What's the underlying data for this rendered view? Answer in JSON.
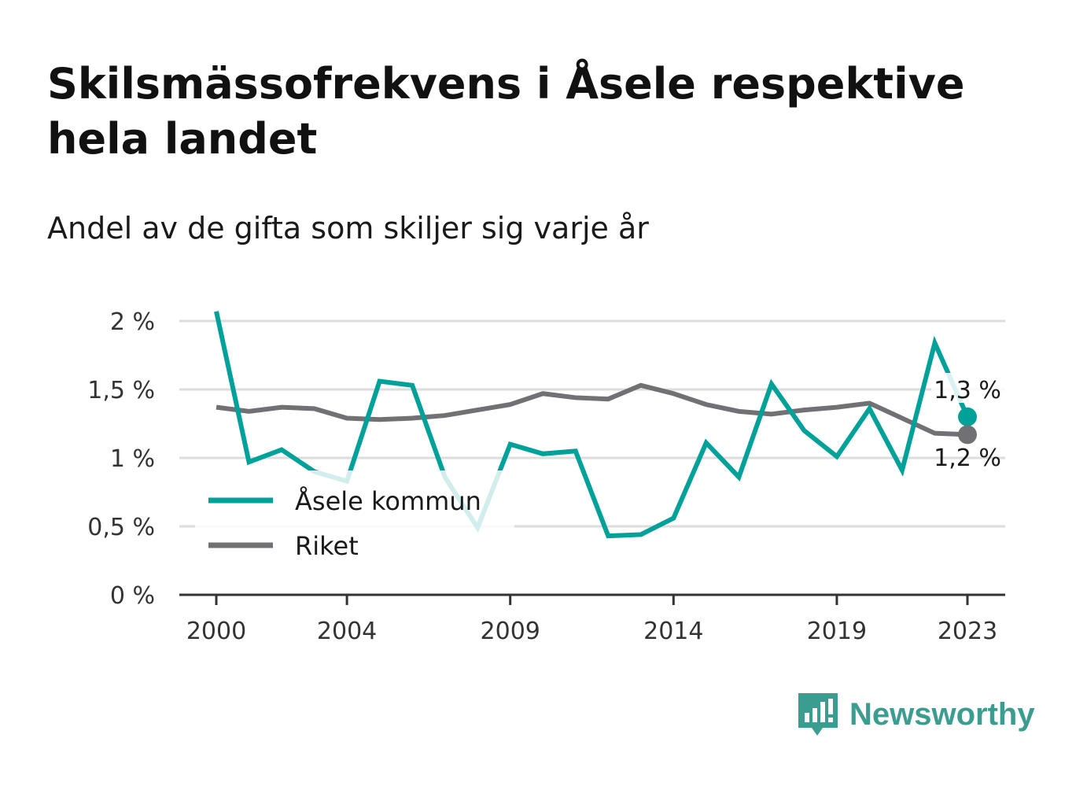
{
  "title": "Skilsmässofrekvens i Åsele respektive hela landet",
  "subtitle": "Andel av de gifta som skiljer sig varje år",
  "brand": {
    "name": "Newsworthy",
    "color": "#3a9d8f",
    "icon": "bar-chart-speech-bubble-icon"
  },
  "colors": {
    "asele": "#00a199",
    "riket": "#717075",
    "grid": "#dddddd",
    "axis": "#333333"
  },
  "chart_data": {
    "type": "line",
    "x": [
      2000,
      2001,
      2002,
      2003,
      2004,
      2005,
      2006,
      2007,
      2008,
      2009,
      2010,
      2011,
      2012,
      2013,
      2014,
      2015,
      2016,
      2017,
      2018,
      2019,
      2020,
      2021,
      2022,
      2023
    ],
    "xticks": [
      2000,
      2004,
      2009,
      2014,
      2019,
      2023
    ],
    "xtick_labels": [
      "2000",
      "2004",
      "2009",
      "2014",
      "2019",
      "2023"
    ],
    "ylim": [
      0,
      2.0
    ],
    "yticks": [
      0,
      0.5,
      1.0,
      1.5,
      2.0
    ],
    "ytick_labels": [
      "0 %",
      "0,5 %",
      "1 %",
      "1,5 %",
      "2 %"
    ],
    "grid": true,
    "legend_position": "bottom-left",
    "series": [
      {
        "name": "Åsele kommun",
        "color": "#00a199",
        "values": [
          2.07,
          0.97,
          1.06,
          0.9,
          0.83,
          1.56,
          1.53,
          0.86,
          0.49,
          1.1,
          1.03,
          1.05,
          0.43,
          0.44,
          0.56,
          1.11,
          0.86,
          1.54,
          1.2,
          1.01,
          1.36,
          0.91,
          1.84,
          1.3
        ],
        "end_label": "1,3 %"
      },
      {
        "name": "Riket",
        "color": "#717075",
        "values": [
          1.37,
          1.34,
          1.37,
          1.36,
          1.29,
          1.28,
          1.29,
          1.31,
          1.35,
          1.39,
          1.47,
          1.44,
          1.43,
          1.53,
          1.47,
          1.39,
          1.34,
          1.32,
          1.35,
          1.37,
          1.4,
          1.29,
          1.18,
          1.17
        ],
        "end_label": "1,2 %"
      }
    ]
  }
}
